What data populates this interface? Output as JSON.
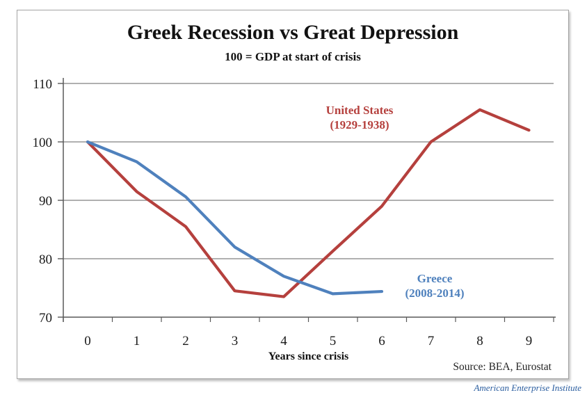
{
  "chart": {
    "title": "Greek Recession vs Great Depression",
    "subtitle": "100 = GDP at start of crisis",
    "xlabel": "Years since crisis",
    "source": "Source: BEA, Eurostat",
    "attribution": "American Enterprise Institute",
    "series_labels": {
      "us": {
        "line1": "United States",
        "line2": "(1929-1938)"
      },
      "greece": {
        "line1": "Greece",
        "line2": "(2008-2014)"
      }
    }
  },
  "chart_data": {
    "type": "line",
    "title": "Greek Recession vs Great Depression",
    "subtitle": "100 = GDP at start of crisis",
    "xlabel": "Years since crisis",
    "ylabel": "",
    "x": [
      0,
      1,
      2,
      3,
      4,
      5,
      6,
      7,
      8,
      9
    ],
    "xticks": [
      "0",
      "1",
      "2",
      "3",
      "4",
      "5",
      "6",
      "7",
      "8",
      "9"
    ],
    "yticks": [
      70,
      80,
      90,
      100,
      110
    ],
    "ylim": [
      70,
      110
    ],
    "grid": true,
    "legend_position": "inline-annotations",
    "series": [
      {
        "name": "United States (1929-1938)",
        "color": "#b5403d",
        "values": [
          100,
          91.5,
          85.5,
          74.5,
          73.5,
          81.3,
          89,
          100,
          105.5,
          102
        ]
      },
      {
        "name": "Greece (2008-2014)",
        "color": "#4f81bd",
        "values": [
          100,
          96.6,
          90.6,
          82,
          77,
          74,
          74.4
        ]
      }
    ],
    "source": "Source: BEA, Eurostat",
    "attribution": "American Enterprise Institute",
    "colors": {
      "gridline": "#808080",
      "axis": "#595959",
      "tick_label": "#1a1a1a"
    }
  }
}
